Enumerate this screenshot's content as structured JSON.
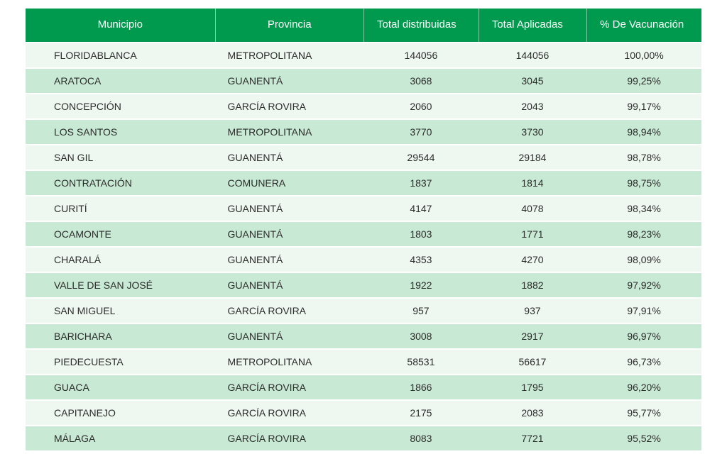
{
  "table": {
    "type": "table",
    "header_bg": "#009a4e",
    "header_fg": "#ffffff",
    "row_light_bg": "#eef8f1",
    "row_dark_bg": "#c8e9d3",
    "text_color": "#2c2c2c",
    "header_fontsize": 15,
    "cell_fontsize": 14,
    "columns": [
      {
        "key": "municipio",
        "label": "Municipio",
        "align": "left",
        "width": "28%"
      },
      {
        "key": "provincia",
        "label": "Provincia",
        "align": "left",
        "width": "22%"
      },
      {
        "key": "distribuidas",
        "label": "Total distribuidas",
        "align": "center",
        "width": "17%"
      },
      {
        "key": "aplicadas",
        "label": "Total Aplicadas",
        "align": "center",
        "width": "16%"
      },
      {
        "key": "pct",
        "label": "% De Vacunación",
        "align": "center",
        "width": "17%"
      }
    ],
    "rows": [
      {
        "municipio": "FLORIDABLANCA",
        "provincia": "METROPOLITANA",
        "distribuidas": "144056",
        "aplicadas": "144056",
        "pct": "100,00%"
      },
      {
        "municipio": "ARATOCA",
        "provincia": "GUANENTÁ",
        "distribuidas": "3068",
        "aplicadas": "3045",
        "pct": "99,25%"
      },
      {
        "municipio": "CONCEPCIÓN",
        "provincia": "GARCÍA ROVIRA",
        "distribuidas": "2060",
        "aplicadas": "2043",
        "pct": "99,17%"
      },
      {
        "municipio": "LOS SANTOS",
        "provincia": "METROPOLITANA",
        "distribuidas": "3770",
        "aplicadas": "3730",
        "pct": "98,94%"
      },
      {
        "municipio": "SAN GIL",
        "provincia": "GUANENTÁ",
        "distribuidas": "29544",
        "aplicadas": "29184",
        "pct": "98,78%"
      },
      {
        "municipio": "CONTRATACIÓN",
        "provincia": "COMUNERA",
        "distribuidas": "1837",
        "aplicadas": "1814",
        "pct": "98,75%"
      },
      {
        "municipio": "CURITÍ",
        "provincia": "GUANENTÁ",
        "distribuidas": "4147",
        "aplicadas": "4078",
        "pct": "98,34%"
      },
      {
        "municipio": "OCAMONTE",
        "provincia": "GUANENTÁ",
        "distribuidas": "1803",
        "aplicadas": "1771",
        "pct": "98,23%"
      },
      {
        "municipio": "CHARALÁ",
        "provincia": "GUANENTÁ",
        "distribuidas": "4353",
        "aplicadas": "4270",
        "pct": "98,09%"
      },
      {
        "municipio": "VALLE DE SAN JOSÉ",
        "provincia": "GUANENTÁ",
        "distribuidas": "1922",
        "aplicadas": "1882",
        "pct": "97,92%"
      },
      {
        "municipio": "SAN MIGUEL",
        "provincia": "GARCÍA ROVIRA",
        "distribuidas": "957",
        "aplicadas": "937",
        "pct": "97,91%"
      },
      {
        "municipio": "BARICHARA",
        "provincia": "GUANENTÁ",
        "distribuidas": "3008",
        "aplicadas": "2917",
        "pct": "96,97%"
      },
      {
        "municipio": "PIEDECUESTA",
        "provincia": "METROPOLITANA",
        "distribuidas": "58531",
        "aplicadas": "56617",
        "pct": "96,73%"
      },
      {
        "municipio": "GUACA",
        "provincia": "GARCÍA ROVIRA",
        "distribuidas": "1866",
        "aplicadas": "1795",
        "pct": "96,20%"
      },
      {
        "municipio": "CAPITANEJO",
        "provincia": "GARCÍA ROVIRA",
        "distribuidas": "2175",
        "aplicadas": "2083",
        "pct": "95,77%"
      },
      {
        "municipio": "MÁLAGA",
        "provincia": "GARCÍA ROVIRA",
        "distribuidas": "8083",
        "aplicadas": "7721",
        "pct": "95,52%"
      }
    ]
  }
}
